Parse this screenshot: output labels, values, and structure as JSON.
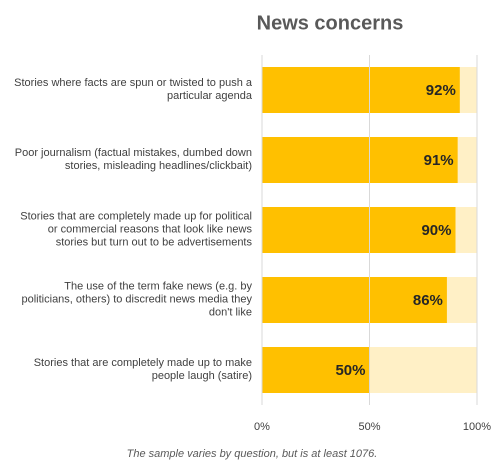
{
  "chart_data": {
    "type": "bar",
    "orientation": "horizontal",
    "title": "News concerns",
    "categories": [
      "Stories where facts are spun or twisted to push a particular agenda",
      "Poor journalism (factual mistakes, dumbed down stories, misleading headlines/clickbait)",
      "Stories that are completely made up for political or commercial reasons that look like news stories but turn out to be advertisements",
      "The use of the term fake news (e.g. by politicians, others) to discredit news media they don't like",
      "Stories that are completely made up to make people laugh (satire)"
    ],
    "values": [
      92,
      91,
      90,
      86,
      50
    ],
    "value_labels": [
      "92%",
      "91%",
      "90%",
      "86%",
      "50%"
    ],
    "color": "#ffc000",
    "track_color": "#fff0c6",
    "xlim": [
      0,
      100
    ],
    "xticks": [
      {
        "value": 0,
        "label": "0%"
      },
      {
        "value": 50,
        "label": "50%"
      },
      {
        "value": 100,
        "label": "100%"
      }
    ],
    "grid": true,
    "footnote": "The sample varies by question, but is at least 1076."
  }
}
